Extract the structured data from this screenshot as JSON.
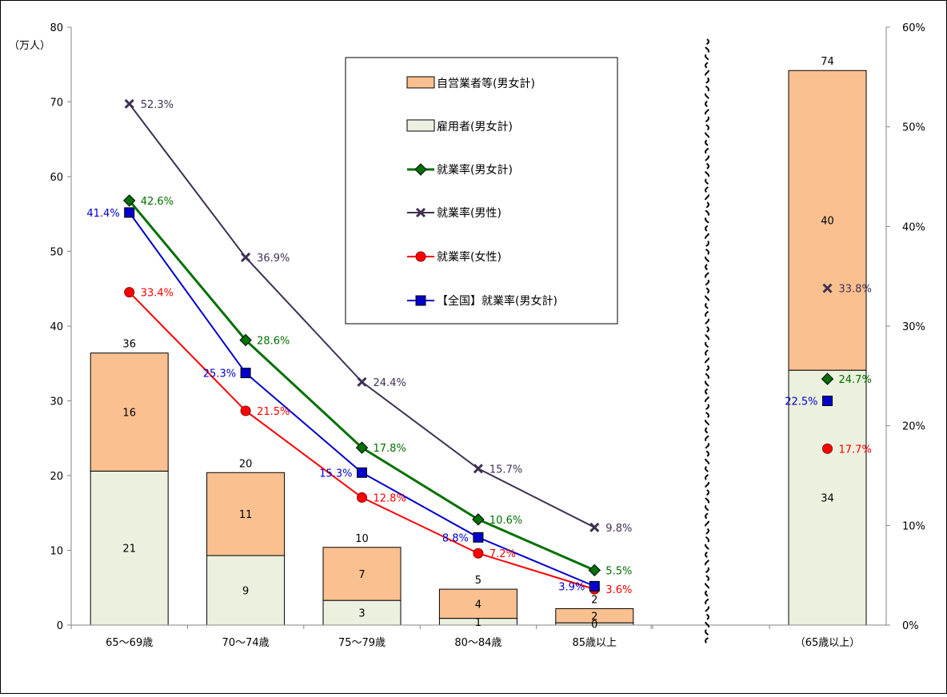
{
  "chart_data": {
    "type": "bar",
    "left_axis": {
      "unit": "（万人）",
      "ylim": [
        0,
        80
      ],
      "ticks": [
        "0",
        "10",
        "20",
        "30",
        "40",
        "50",
        "60",
        "70",
        "80"
      ]
    },
    "right_axis": {
      "ylim": [
        0,
        0.6
      ],
      "ticks": [
        "0%",
        "10%",
        "20%",
        "30%",
        "40%",
        "50%",
        "60%"
      ]
    },
    "legend_position": "top-center",
    "legend": [
      {
        "key": "self",
        "label": "自営業者等(男女計)",
        "kind": "bar",
        "color": "#FAC090"
      },
      {
        "key": "emp",
        "label": "雇用者(男女計)",
        "kind": "bar",
        "color": "#EBF1DE"
      },
      {
        "key": "rate_total",
        "label": "就業率(男女計)",
        "kind": "line",
        "color": "#007000",
        "marker": "diamond"
      },
      {
        "key": "rate_male",
        "label": "就業率(男性)",
        "kind": "line",
        "color": "#403152",
        "marker": "x"
      },
      {
        "key": "rate_female",
        "label": "就業率(女性)",
        "kind": "line",
        "color": "#FF0000",
        "marker": "circle"
      },
      {
        "key": "rate_national",
        "label": "【全国】就業率(男女計)",
        "kind": "line",
        "color": "#0000CC",
        "marker": "square"
      }
    ],
    "groups": [
      {
        "categories": [
          "65〜69歳",
          "70〜74歳",
          "75〜79歳",
          "80〜84歳",
          "85歳以上"
        ],
        "employee": [
          20.6,
          9.3,
          3.3,
          0.9,
          0.3
        ],
        "self_employed": [
          15.8,
          11.1,
          7.1,
          3.9,
          1.9
        ],
        "employee_labels": [
          "21",
          "9",
          "3",
          "1",
          "0"
        ],
        "self_employed_labels": [
          "16",
          "11",
          "7",
          "4",
          "2"
        ],
        "total_labels": [
          "36",
          "20",
          "10",
          "5",
          "2"
        ],
        "rates": {
          "rate_male": {
            "values": [
              52.3,
              36.9,
              24.4,
              15.7,
              9.8
            ],
            "labels": [
              "52.3%",
              "36.9%",
              "24.4%",
              "15.7%",
              "9.8%"
            ]
          },
          "rate_total": {
            "values": [
              42.6,
              28.6,
              17.8,
              10.6,
              5.5
            ],
            "labels": [
              "42.6%",
              "28.6%",
              "17.8%",
              "10.6%",
              "5.5%"
            ]
          },
          "rate_national": {
            "values": [
              41.4,
              25.3,
              15.3,
              8.8,
              3.9
            ],
            "labels": [
              "41.4%",
              "25.3%",
              "15.3%",
              "8.8%",
              "3.9%"
            ]
          },
          "rate_female": {
            "values": [
              33.4,
              21.5,
              12.8,
              7.2,
              3.6
            ],
            "labels": [
              "33.4%",
              "21.5%",
              "12.8%",
              "7.2%",
              "3.6%"
            ]
          }
        }
      },
      {
        "categories": [
          "（65歳以上）"
        ],
        "employee": [
          34.1
        ],
        "self_employed": [
          40.1
        ],
        "employee_labels": [
          "34"
        ],
        "self_employed_labels": [
          "40"
        ],
        "total_labels": [
          "74"
        ],
        "rates": {
          "rate_male": {
            "values": [
              33.8
            ],
            "labels": [
              "33.8%"
            ]
          },
          "rate_total": {
            "values": [
              24.7
            ],
            "labels": [
              "24.7%"
            ]
          },
          "rate_national": {
            "values": [
              22.5
            ],
            "labels": [
              "22.5%"
            ]
          },
          "rate_female": {
            "values": [
              17.7
            ],
            "labels": [
              "17.7%"
            ]
          }
        }
      }
    ]
  }
}
